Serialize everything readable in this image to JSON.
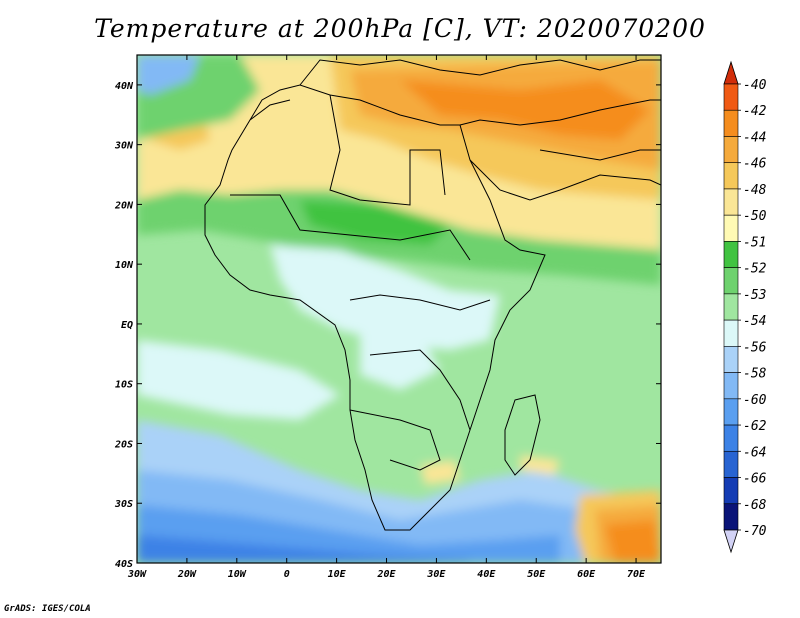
{
  "title": "Temperature at 200hPa [C], VT: 2020070200",
  "credit": "GrADS: IGES/COLA",
  "map": {
    "lon_range": [
      -30,
      75
    ],
    "lat_range": [
      -40,
      45
    ],
    "lon_ticks": [
      "30W",
      "20W",
      "10W",
      "0",
      "10E",
      "20E",
      "30E",
      "40E",
      "50E",
      "60E",
      "70E"
    ],
    "lat_ticks": [
      "40S",
      "30S",
      "20S",
      "10S",
      "EQ",
      "10N",
      "20N",
      "30N",
      "40N"
    ],
    "region": "Africa and Middle East"
  },
  "colorbar": {
    "labels": [
      "-40",
      "-42",
      "-44",
      "-46",
      "-48",
      "-50",
      "-51",
      "-52",
      "-53",
      "-54",
      "-56",
      "-58",
      "-60",
      "-62",
      "-64",
      "-66",
      "-68",
      "-70"
    ],
    "colors": [
      "#d12d0a",
      "#f05a14",
      "#f58d1e",
      "#f5aa3c",
      "#f5c85a",
      "#fae696",
      "#fffab4",
      "#41c341",
      "#6ed26e",
      "#a0e6a0",
      "#dcf8f8",
      "#aad2f8",
      "#82b9f5",
      "#5a9ff0",
      "#3c82e6",
      "#2864d2",
      "#143cb4",
      "#0a1478",
      "#d2d2f5"
    ]
  }
}
